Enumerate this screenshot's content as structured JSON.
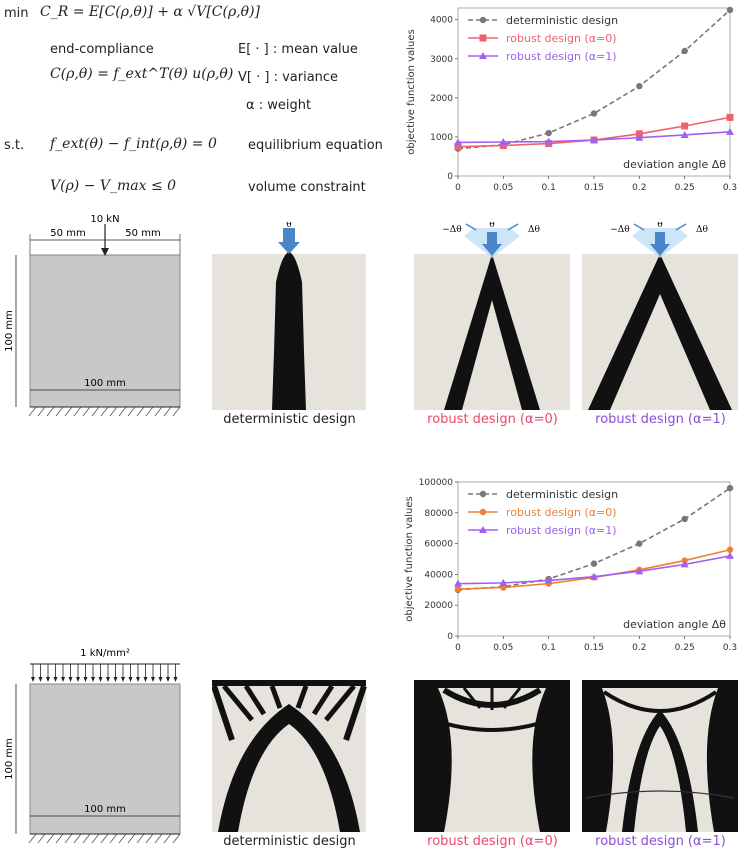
{
  "formulation": {
    "min_label": "min",
    "objective": "C_R = E[C(ρ,θ)] + α √V[C(ρ,θ)]",
    "end_compliance_label": "end-compliance",
    "compliance_def": "C(ρ,θ) = f_ext^T(θ) u(ρ,θ)",
    "mean_def": "E[ · ] : mean value",
    "var_def": "V[ · ] : variance",
    "alpha_def": "α   : weight",
    "st_label": "s.t.",
    "equilibrium_eq": "f_ext(θ) − f_int(ρ,θ) = 0",
    "equilibrium_label": "equilibrium equation",
    "volume_eq": "V(ρ) − V_max ≤ 0",
    "volume_label": "volume constraint"
  },
  "colors": {
    "deterministic": "#777777",
    "robust0_top": "#f06070",
    "robust1": "#a060f0",
    "robust0_bottom": "#f08030",
    "design_domain": "#c8c8c8",
    "background_domain": "#e6e3dd",
    "load_arrow": "#4a86c8"
  },
  "problem1": {
    "load_label": "10 kN",
    "dim_left": "50 mm",
    "dim_right": "50 mm",
    "dim_height": "100 mm",
    "dim_width": "100 mm",
    "theta_label": "θ̄",
    "minus_dtheta": "−Δθ",
    "plus_dtheta": "Δθ"
  },
  "problem2": {
    "load_label": "1 kN/mm²",
    "dim_height": "100 mm",
    "dim_width": "100 mm"
  },
  "captions": {
    "deterministic": "deterministic design",
    "robust0": "robust design (α=0)",
    "robust1": "robust design (α=1)"
  },
  "chart_data": [
    {
      "type": "line",
      "xlabel": "deviation angle Δθ",
      "ylabel": "objective function values",
      "x": [
        0,
        0.05,
        0.1,
        0.15,
        0.2,
        0.25,
        0.3
      ],
      "xticks": [
        "0",
        "0.05",
        "0.1",
        "0.15",
        "0.2",
        "0.25",
        "0.3"
      ],
      "ylim": [
        0,
        4300
      ],
      "yticks": [
        0,
        1000,
        2000,
        3000,
        4000
      ],
      "series": [
        {
          "name": "deterministic design",
          "style": "dashed",
          "marker": "circle",
          "color": "#777777",
          "values": [
            700,
            800,
            1100,
            1600,
            2300,
            3200,
            4250
          ]
        },
        {
          "name": "robust design (α=0)",
          "style": "solid",
          "marker": "square",
          "color": "#f06070",
          "values": [
            750,
            780,
            830,
            920,
            1080,
            1280,
            1500
          ]
        },
        {
          "name": "robust design (α=1)",
          "style": "solid",
          "marker": "triangle",
          "color": "#a060f0",
          "values": [
            860,
            870,
            880,
            920,
            980,
            1050,
            1130
          ]
        }
      ],
      "legend": "top-left"
    },
    {
      "type": "line",
      "xlabel": "deviation angle Δθ",
      "ylabel": "objective function values",
      "x": [
        0,
        0.05,
        0.1,
        0.15,
        0.2,
        0.25,
        0.3
      ],
      "xticks": [
        "0",
        "0.05",
        "0.1",
        "0.15",
        "0.2",
        "0.25",
        "0.3"
      ],
      "ylim": [
        0,
        100000
      ],
      "yticks": [
        0,
        20000,
        40000,
        60000,
        80000,
        100000
      ],
      "series": [
        {
          "name": "deterministic design",
          "style": "dashed",
          "marker": "circle",
          "color": "#777777",
          "values": [
            30000,
            32000,
            37000,
            47000,
            60000,
            76000,
            96000
          ]
        },
        {
          "name": "robust design (α=0)",
          "style": "solid",
          "marker": "circle",
          "color": "#f08030",
          "values": [
            30500,
            31500,
            34000,
            38000,
            43000,
            49000,
            56000
          ]
        },
        {
          "name": "robust design (α=1)",
          "style": "solid",
          "marker": "triangle",
          "color": "#a060f0",
          "values": [
            34000,
            34500,
            36000,
            38500,
            42000,
            46500,
            52000
          ]
        }
      ],
      "legend": "top-left"
    }
  ]
}
